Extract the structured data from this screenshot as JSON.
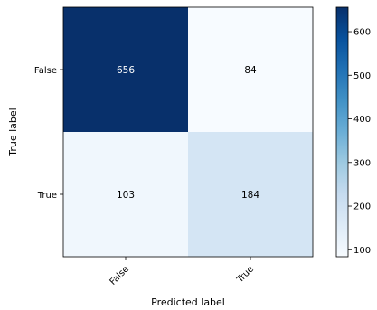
{
  "chart_data": {
    "type": "heatmap",
    "title": "",
    "xlabel": "Predicted label",
    "ylabel": "True label",
    "x_categories": [
      "False",
      "True"
    ],
    "y_categories": [
      "False",
      "True"
    ],
    "values": [
      [
        656,
        84
      ],
      [
        103,
        184
      ]
    ],
    "colormap": "Blues",
    "colorbar": {
      "ticks": [
        100,
        200,
        300,
        400,
        500,
        600
      ],
      "range": [
        84,
        656
      ]
    }
  },
  "colors": {
    "low": "#f7fbff",
    "high": "#08306b",
    "text_dark": "#000000",
    "text_light": "#ffffff"
  }
}
